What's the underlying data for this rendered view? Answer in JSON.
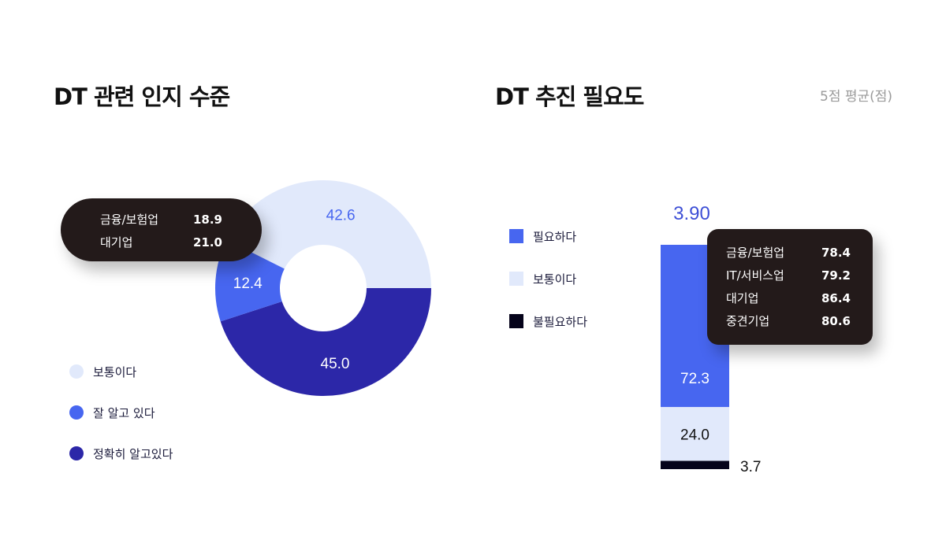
{
  "chart_data": [
    {
      "type": "pie",
      "title": "DT 관련 인지 수준",
      "slices": [
        {
          "name": "정확히 알고있다",
          "value": 45.0,
          "color": "#2c27a8"
        },
        {
          "name": "잘 알고 있다",
          "value": 12.4,
          "color": "#4766f0"
        },
        {
          "name": "보통이다",
          "value": 42.6,
          "color": "#e1e9fb"
        }
      ],
      "legend": [
        "보통이다",
        "잘 알고 있다",
        "정확히 알고있다"
      ],
      "tooltip": [
        {
          "label": "금융/보험업",
          "value": "18.9"
        },
        {
          "label": "대기업",
          "value": "21.0"
        }
      ]
    },
    {
      "type": "bar",
      "stacked": true,
      "title": "DT 추진 필요도",
      "unit_note": "5점 평균(점)",
      "average": "3.90",
      "series": [
        {
          "name": "필요하다",
          "value": 72.3,
          "color": "#4766f0"
        },
        {
          "name": "보통이다",
          "value": 24.0,
          "color": "#e1e9fb"
        },
        {
          "name": "불필요하다",
          "value": 3.7,
          "color": "#05031a"
        }
      ],
      "tooltip": [
        {
          "label": "금융/보험업",
          "value": "78.4"
        },
        {
          "label": "IT/서비스업",
          "value": "79.2"
        },
        {
          "label": "대기업",
          "value": "86.4"
        },
        {
          "label": "중견기업",
          "value": "80.6"
        }
      ]
    }
  ]
}
